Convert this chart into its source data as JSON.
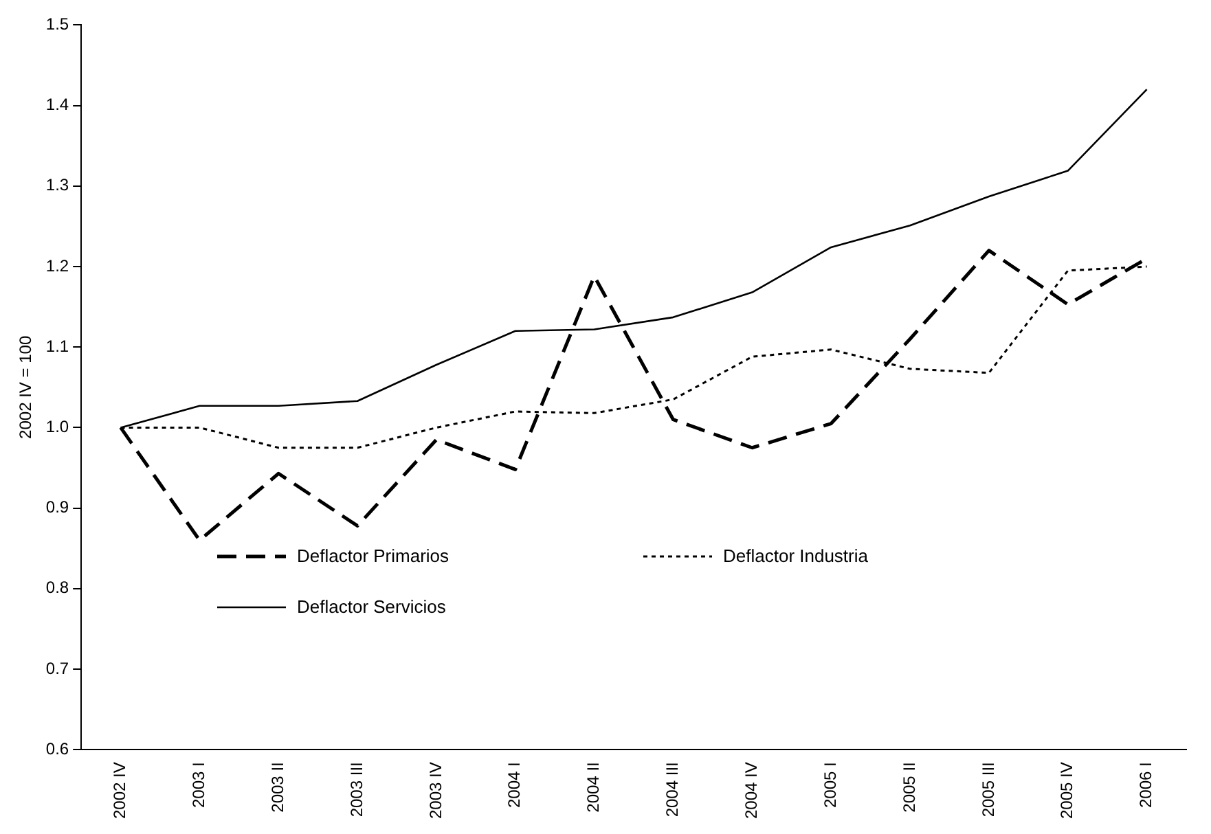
{
  "chart_data": {
    "type": "line",
    "ylabel": "2002 IV = 100",
    "categories": [
      "2002 IV",
      "2003 I",
      "2003 II",
      "2003 III",
      "2003 IV",
      "2004 I",
      "2004 II",
      "2004 III",
      "2004 IV",
      "2005 I",
      "2005 II",
      "2005 III",
      "2005 IV",
      "2006 I"
    ],
    "series": [
      {
        "name": "Deflactor Primarios",
        "color": "#000000",
        "line_style": "dashed",
        "values": [
          1.0,
          0.86,
          0.943,
          0.878,
          0.985,
          0.948,
          1.188,
          1.01,
          0.975,
          1.005,
          1.11,
          1.22,
          1.153,
          1.21
        ]
      },
      {
        "name": "Deflactor Industria",
        "color": "#000000",
        "line_style": "dotted",
        "values": [
          1.0,
          1.0,
          0.975,
          0.975,
          1.0,
          1.02,
          1.018,
          1.035,
          1.088,
          1.097,
          1.073,
          1.068,
          1.195,
          1.2
        ]
      },
      {
        "name": "Deflactor Servicios",
        "color": "#000000",
        "line_style": "solid",
        "values": [
          1.0,
          1.027,
          1.027,
          1.033,
          1.078,
          1.12,
          1.122,
          1.137,
          1.168,
          1.224,
          1.251,
          1.287,
          1.319,
          1.42
        ]
      }
    ],
    "ylim": [
      0.6,
      1.5
    ],
    "yticks": [
      0.6,
      0.7,
      0.8,
      0.9,
      {
        "value": 1,
        "label": "1.0"
      },
      1.1,
      1.2,
      1.3,
      1.4,
      1.5
    ],
    "grid": false,
    "legend": "bottom left",
    "marker": "none"
  }
}
